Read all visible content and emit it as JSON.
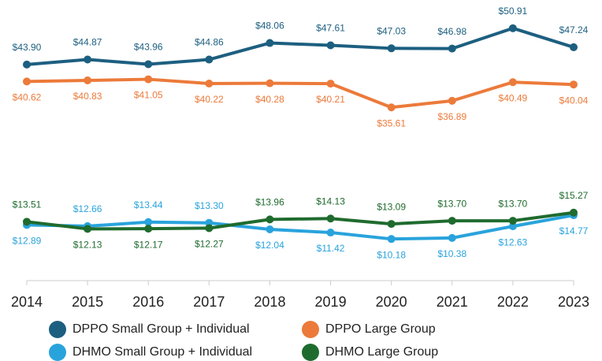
{
  "chart_data": {
    "type": "line",
    "categories": [
      "2014",
      "2015",
      "2016",
      "2017",
      "2018",
      "2019",
      "2020",
      "2021",
      "2022",
      "2023"
    ],
    "ylim": [
      0,
      55
    ],
    "series": [
      {
        "name": "DPPO Small Group + Individual",
        "color": "#1d5f80",
        "values": [
          43.9,
          44.87,
          43.96,
          44.86,
          48.06,
          47.61,
          47.03,
          46.98,
          50.91,
          47.24
        ],
        "value_labels": [
          "$43.90",
          "$44.87",
          "$43.96",
          "$44.86",
          "$48.06",
          "$47.61",
          "$47.03",
          "$46.98",
          "$50.91",
          "$47.24"
        ]
      },
      {
        "name": "DPPO Large Group",
        "color": "#ec7a3a",
        "values": [
          40.62,
          40.83,
          41.05,
          40.22,
          40.28,
          40.21,
          35.61,
          36.89,
          40.49,
          40.04
        ],
        "value_labels": [
          "$40.62",
          "$40.83",
          "$41.05",
          "$40.22",
          "$40.28",
          "$40.21",
          "$35.61",
          "$36.89",
          "$40.49",
          "$40.04"
        ]
      },
      {
        "name": "DHMO Small Group + Individual",
        "color": "#29a3dc",
        "values": [
          12.89,
          12.66,
          13.44,
          13.3,
          12.04,
          11.42,
          10.18,
          10.38,
          12.63,
          14.77
        ],
        "value_labels": [
          "$12.89",
          "$12.66",
          "$13.44",
          "$13.30",
          "$12.04",
          "$11.42",
          "$10.18",
          "$10.38",
          "$12.63",
          "$14.77"
        ]
      },
      {
        "name": "DHMO Large Group",
        "color": "#1f6b2e",
        "values": [
          13.51,
          12.13,
          12.17,
          12.27,
          13.96,
          14.13,
          13.09,
          13.7,
          13.7,
          15.27
        ],
        "value_labels": [
          "$13.51",
          "$12.13",
          "$12.17",
          "$12.27",
          "$13.96",
          "$14.13",
          "$13.09",
          "$13.70",
          "$13.70",
          "$15.27"
        ]
      }
    ]
  }
}
